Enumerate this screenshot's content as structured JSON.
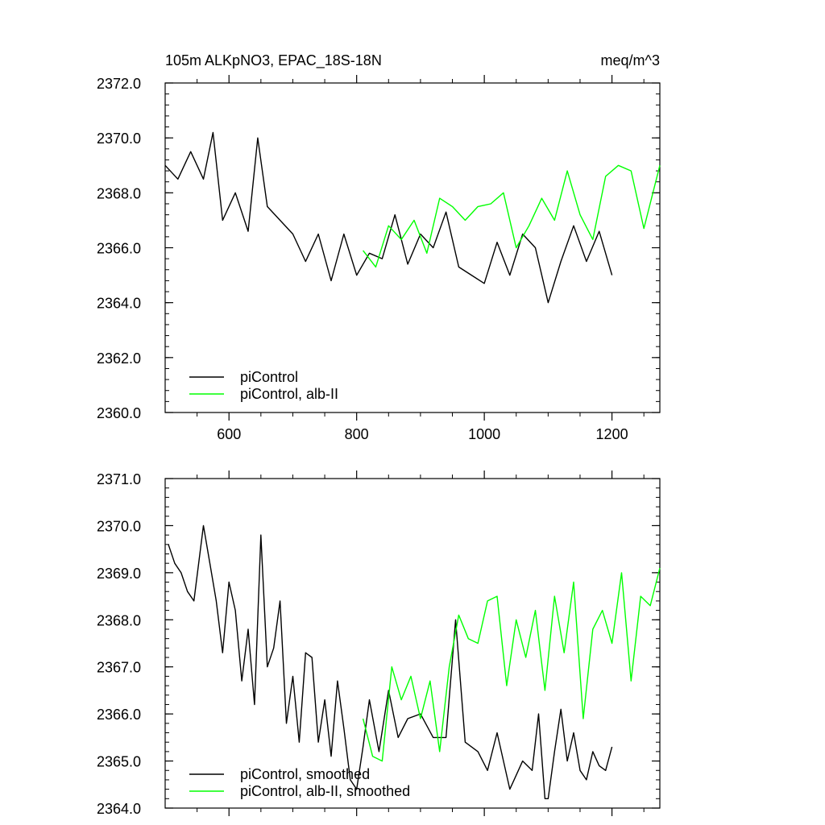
{
  "chart_data": [
    {
      "type": "line",
      "title": "105m ALKpNO3, EPAC_18S-18N",
      "units": "meq/m^3",
      "xlim": [
        500,
        1275
      ],
      "ylim": [
        2360.0,
        2372.0
      ],
      "x_ticks": [
        600,
        800,
        1000,
        1200
      ],
      "x_tick_labels": [
        "600",
        "800",
        "1000",
        "1200"
      ],
      "y_ticks": [
        2360.0,
        2362.0,
        2364.0,
        2366.0,
        2368.0,
        2370.0,
        2372.0
      ],
      "y_tick_labels": [
        "2360.0",
        "2362.0",
        "2364.0",
        "2366.0",
        "2368.0",
        "2370.0",
        "2372.0"
      ],
      "legend_position": "bottom-left",
      "series": [
        {
          "name": "piControl",
          "color": "#000000",
          "x": [
            500,
            520,
            540,
            560,
            575,
            590,
            610,
            630,
            645,
            660,
            680,
            700,
            720,
            740,
            760,
            780,
            800,
            820,
            840,
            860,
            880,
            900,
            920,
            940,
            960,
            980,
            1000,
            1020,
            1040,
            1060,
            1080,
            1100,
            1120,
            1140,
            1160,
            1180,
            1200
          ],
          "y": [
            2369.0,
            2368.5,
            2369.5,
            2368.5,
            2370.2,
            2367.0,
            2368.0,
            2366.6,
            2370.0,
            2367.5,
            2367.0,
            2366.5,
            2365.5,
            2366.5,
            2364.8,
            2366.5,
            2365.0,
            2365.8,
            2365.6,
            2367.2,
            2365.4,
            2366.5,
            2366.0,
            2367.3,
            2365.3,
            2365.0,
            2364.7,
            2366.2,
            2365.0,
            2366.5,
            2366.0,
            2364.0,
            2365.5,
            2366.8,
            2365.5,
            2366.6,
            2365.0
          ]
        },
        {
          "name": "piControl, alb-II",
          "color": "#00ff00",
          "x": [
            810,
            830,
            850,
            870,
            890,
            910,
            930,
            950,
            970,
            990,
            1010,
            1030,
            1050,
            1070,
            1090,
            1110,
            1130,
            1150,
            1170,
            1190,
            1210,
            1230,
            1250,
            1275
          ],
          "y": [
            2365.9,
            2365.3,
            2366.8,
            2366.3,
            2367.0,
            2365.8,
            2367.8,
            2367.5,
            2367.0,
            2367.5,
            2367.6,
            2368.0,
            2366.0,
            2366.8,
            2367.8,
            2367.0,
            2368.8,
            2367.2,
            2366.3,
            2368.6,
            2369.0,
            2368.8,
            2366.7,
            2369.0
          ]
        }
      ]
    },
    {
      "type": "line",
      "title": "",
      "xlim": [
        500,
        1275
      ],
      "ylim": [
        2364.0,
        2371.0
      ],
      "x_ticks": [
        600,
        800,
        1000,
        1200
      ],
      "y_ticks": [
        2364.0,
        2365.0,
        2366.0,
        2367.0,
        2368.0,
        2369.0,
        2370.0,
        2371.0
      ],
      "y_tick_labels": [
        "2364.0",
        "2365.0",
        "2366.0",
        "2367.0",
        "2368.0",
        "2369.0",
        "2370.0",
        "2371.0"
      ],
      "legend_position": "bottom-left",
      "series": [
        {
          "name": "piControl, smoothed",
          "color": "#000000",
          "x": [
            505,
            515,
            525,
            535,
            545,
            560,
            570,
            580,
            590,
            600,
            610,
            620,
            630,
            640,
            650,
            660,
            670,
            680,
            690,
            700,
            710,
            720,
            730,
            740,
            750,
            760,
            770,
            780,
            790,
            800,
            810,
            820,
            835,
            850,
            865,
            880,
            900,
            920,
            940,
            955,
            970,
            990,
            1005,
            1020,
            1040,
            1060,
            1075,
            1085,
            1095,
            1100,
            1110,
            1120,
            1130,
            1140,
            1150,
            1160,
            1170,
            1180,
            1190,
            1200
          ],
          "y": [
            2369.6,
            2369.2,
            2369.0,
            2368.6,
            2368.4,
            2370.0,
            2369.2,
            2368.4,
            2367.3,
            2368.8,
            2368.2,
            2366.7,
            2367.8,
            2366.2,
            2369.8,
            2367.0,
            2367.4,
            2368.4,
            2365.8,
            2366.8,
            2365.4,
            2367.3,
            2367.2,
            2365.4,
            2366.3,
            2365.1,
            2366.7,
            2365.7,
            2364.6,
            2364.4,
            2365.3,
            2366.3,
            2365.2,
            2366.5,
            2365.5,
            2365.9,
            2366.0,
            2365.5,
            2365.5,
            2368.0,
            2365.4,
            2365.2,
            2364.8,
            2365.6,
            2364.4,
            2365.0,
            2364.8,
            2366.0,
            2364.2,
            2364.2,
            2365.2,
            2366.1,
            2365.0,
            2365.6,
            2364.8,
            2364.6,
            2365.2,
            2364.9,
            2364.8,
            2365.3
          ]
        },
        {
          "name": "piControl, alb-II, smoothed",
          "color": "#00ff00",
          "x": [
            810,
            825,
            840,
            855,
            870,
            885,
            900,
            915,
            930,
            945,
            960,
            975,
            990,
            1005,
            1020,
            1035,
            1050,
            1065,
            1080,
            1095,
            1110,
            1125,
            1140,
            1155,
            1170,
            1185,
            1200,
            1215,
            1230,
            1245,
            1260,
            1275
          ],
          "y": [
            2365.9,
            2365.1,
            2365.0,
            2367.0,
            2366.3,
            2366.8,
            2365.9,
            2366.7,
            2365.2,
            2367.0,
            2368.1,
            2367.6,
            2367.5,
            2368.4,
            2368.5,
            2366.6,
            2368.0,
            2367.2,
            2368.2,
            2366.5,
            2368.5,
            2367.3,
            2368.8,
            2365.9,
            2367.8,
            2368.2,
            2367.5,
            2369.0,
            2366.7,
            2368.5,
            2368.3,
            2369.1
          ]
        }
      ]
    }
  ]
}
